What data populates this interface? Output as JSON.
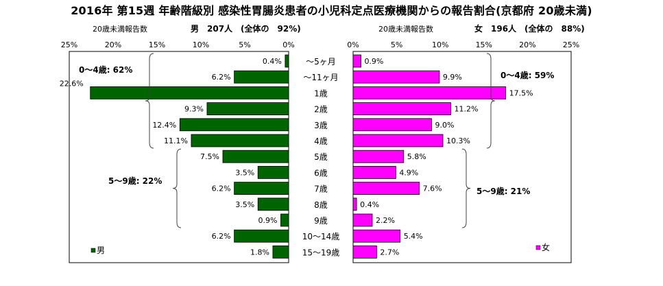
{
  "title": "2016年 第15週 年齢階級別 感染性胃腸炎患者の小児科定点医療機関からの報告割合(京都府 20歳未満)",
  "age_groups": [
    "～5ヶ月",
    "～11ヶ月",
    "1歳",
    "2歳",
    "3歳",
    "4歳",
    "5歳",
    "6歳",
    "7歳",
    "8歳",
    "9歳",
    "10～14歳",
    "15～19歳"
  ],
  "colors": {
    "male": "#006400",
    "female": "#ff00ff"
  },
  "chart_data": [
    {
      "type": "bar",
      "orientation": "horizontal",
      "direction": "right-to-left",
      "subtitle_left": "20歳未満報告数",
      "subtitle_right": "男　207人　(全体の　92%)",
      "xlim": [
        0,
        25
      ],
      "ticks": [
        "25%",
        "20%",
        "15%",
        "10%",
        "5%",
        "0%"
      ],
      "categories": [
        "～5ヶ月",
        "～11ヶ月",
        "1歳",
        "2歳",
        "3歳",
        "4歳",
        "5歳",
        "6歳",
        "7歳",
        "8歳",
        "9歳",
        "10～14歳",
        "15～19歳"
      ],
      "series": [
        {
          "name": "男",
          "values": [
            0.4,
            6.2,
            22.6,
            9.3,
            12.4,
            11.1,
            7.5,
            3.5,
            6.2,
            3.5,
            0.9,
            6.2,
            1.8
          ]
        }
      ],
      "data_labels": [
        "0.4%",
        "6.2%",
        "22.6%",
        "9.3%",
        "12.4%",
        "11.1%",
        "7.5%",
        "3.5%",
        "6.2%",
        "3.5%",
        "0.9%",
        "6.2%",
        "1.8%"
      ],
      "annotations": [
        "0～4歳: 62%",
        "5～9歳: 22%"
      ],
      "legend": "bottom-left"
    },
    {
      "type": "bar",
      "orientation": "horizontal",
      "direction": "left-to-right",
      "subtitle_left": "20歳未満報告数",
      "subtitle_right": "女　196人　(全体の　88%)",
      "xlim": [
        0,
        25
      ],
      "ticks": [
        "0%",
        "5%",
        "10%",
        "15%",
        "20%",
        "25%"
      ],
      "categories": [
        "～5ヶ月",
        "～11ヶ月",
        "1歳",
        "2歳",
        "3歳",
        "4歳",
        "5歳",
        "6歳",
        "7歳",
        "8歳",
        "9歳",
        "10～14歳",
        "15～19歳"
      ],
      "series": [
        {
          "name": "女",
          "values": [
            0.9,
            9.9,
            17.5,
            11.2,
            9.0,
            10.3,
            5.8,
            4.9,
            7.6,
            0.4,
            2.2,
            5.4,
            2.7
          ]
        }
      ],
      "data_labels": [
        "0.9%",
        "9.9%",
        "17.5%",
        "11.2%",
        "9.0%",
        "10.3%",
        "5.8%",
        "4.9%",
        "7.6%",
        "0.4%",
        "2.2%",
        "5.4%",
        "2.7%"
      ],
      "annotations": [
        "0～4歳: 59%",
        "5～9歳: 21%"
      ],
      "legend": "bottom-right"
    }
  ]
}
